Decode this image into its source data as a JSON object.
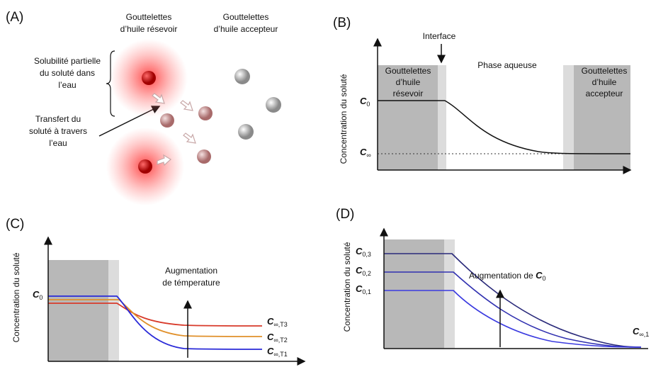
{
  "panel_a": {
    "label": "(A)",
    "reservoir_title": [
      "Gouttelettes",
      "d’huile résevoir"
    ],
    "acceptor_title": [
      "Gouttelettes",
      "d’huile accepteur"
    ],
    "solubility_note": [
      "Solubilité partielle",
      "du soluté dans",
      "l’eau"
    ],
    "transfer_note": [
      "Transfert du",
      "soluté à travers",
      "l’eau"
    ]
  },
  "panel_b": {
    "label": "(B)",
    "y_axis_label": "Concentration du soluté",
    "interface": "Interface",
    "aqueous_phase": "Phase aqueuse",
    "reservoir_region": [
      "Gouttelettes",
      "d’huile",
      "résevoir"
    ],
    "acceptor_region": [
      "Gouttelettes",
      "d’huile",
      "accepteur"
    ],
    "c0": {
      "main": "C",
      "sub": "0"
    },
    "c_inf": {
      "main": "C",
      "sub": "∞"
    }
  },
  "panel_c": {
    "label": "(C)",
    "y_axis_label": "Concentration du soluté",
    "c0": {
      "main": "C",
      "sub": "0"
    },
    "temperature_note": [
      "Augmentation",
      "de témperature"
    ],
    "curves": [
      {
        "main": "C",
        "sub": "∞,T3"
      },
      {
        "main": "C",
        "sub": "∞,T2"
      },
      {
        "main": "C",
        "sub": "∞,T1"
      }
    ]
  },
  "panel_d": {
    "label": "(D)",
    "y_axis_label": "Concentration du soluté",
    "levels": [
      {
        "main": "C",
        "sub": "0,3"
      },
      {
        "main": "C",
        "sub": "0,2"
      },
      {
        "main": "C",
        "sub": "0,1"
      }
    ],
    "note": {
      "text": "Augmentation de ",
      "main": "C",
      "sub": "0"
    },
    "end_label": {
      "main": "C",
      "sub": "∞,1"
    }
  }
}
